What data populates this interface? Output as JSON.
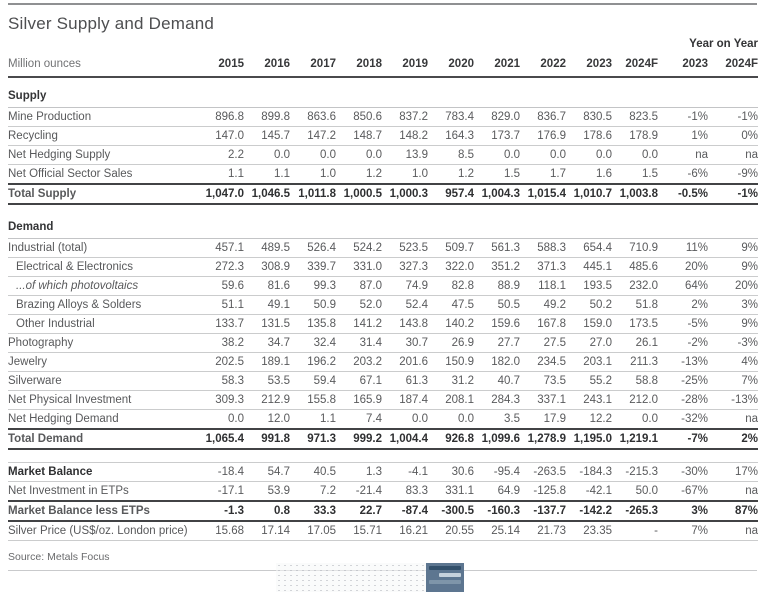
{
  "title": "Silver Supply and Demand",
  "unit_label": "Million ounces",
  "yoy_label": "Year on Year",
  "columns": [
    "2015",
    "2016",
    "2017",
    "2018",
    "2019",
    "2020",
    "2021",
    "2022",
    "2023",
    "2024F"
  ],
  "yoy_columns": [
    "2023",
    "2024F"
  ],
  "source": "Source: Metals Focus",
  "colors": {
    "rule_dark": "#424345",
    "rule_light": "#cbcccd",
    "text_dark": "#2f3032",
    "text_gray": "#595a5c",
    "thumbnail_panel_blue": "#5d7690"
  },
  "icons": {
    "chart_thumbnail": "scatter-chart-preview"
  },
  "sections": [
    {
      "header": "Supply",
      "rows": [
        {
          "label": "Mine Production",
          "style": "plain",
          "values": [
            "896.8",
            "899.8",
            "863.6",
            "850.6",
            "837.2",
            "783.4",
            "829.0",
            "836.7",
            "830.5",
            "823.5"
          ],
          "yoy": [
            "-1%",
            "-1%"
          ]
        },
        {
          "label": "Recycling",
          "style": "plain",
          "values": [
            "147.0",
            "145.7",
            "147.2",
            "148.7",
            "148.2",
            "164.3",
            "173.7",
            "176.9",
            "178.6",
            "178.9"
          ],
          "yoy": [
            "1%",
            "0%"
          ]
        },
        {
          "label": "Net Hedging Supply",
          "style": "plain",
          "values": [
            "2.2",
            "0.0",
            "0.0",
            "0.0",
            "13.9",
            "8.5",
            "0.0",
            "0.0",
            "0.0",
            "0.0"
          ],
          "yoy": [
            "na",
            "na"
          ]
        },
        {
          "label": "Net Official Sector Sales",
          "style": "plain",
          "values": [
            "1.1",
            "1.1",
            "1.0",
            "1.2",
            "1.0",
            "1.2",
            "1.5",
            "1.7",
            "1.6",
            "1.5"
          ],
          "yoy": [
            "-6%",
            "-9%"
          ]
        },
        {
          "label": "Total Supply",
          "style": "total",
          "values": [
            "1,047.0",
            "1,046.5",
            "1,011.8",
            "1,000.5",
            "1,000.3",
            "957.4",
            "1,004.3",
            "1,015.4",
            "1,010.7",
            "1,003.8"
          ],
          "yoy": [
            "-0.5%",
            "-1%"
          ]
        }
      ]
    },
    {
      "header": "Demand",
      "rows": [
        {
          "label": "Industrial (total)",
          "style": "plain",
          "values": [
            "457.1",
            "489.5",
            "526.4",
            "524.2",
            "523.5",
            "509.7",
            "561.3",
            "588.3",
            "654.4",
            "710.9"
          ],
          "yoy": [
            "11%",
            "9%"
          ]
        },
        {
          "label": "Electrical & Electronics",
          "style": "indent",
          "values": [
            "272.3",
            "308.9",
            "339.7",
            "331.0",
            "327.3",
            "322.0",
            "351.2",
            "371.3",
            "445.1",
            "485.6"
          ],
          "yoy": [
            "20%",
            "9%"
          ]
        },
        {
          "label": "...of which photovoltaics",
          "style": "italic",
          "values": [
            "59.6",
            "81.6",
            "99.3",
            "87.0",
            "74.9",
            "82.8",
            "88.9",
            "118.1",
            "193.5",
            "232.0"
          ],
          "yoy": [
            "64%",
            "20%"
          ]
        },
        {
          "label": "Brazing Alloys & Solders",
          "style": "indent",
          "values": [
            "51.1",
            "49.1",
            "50.9",
            "52.0",
            "52.4",
            "47.5",
            "50.5",
            "49.2",
            "50.2",
            "51.8"
          ],
          "yoy": [
            "2%",
            "3%"
          ]
        },
        {
          "label": "Other Industrial",
          "style": "indent",
          "values": [
            "133.7",
            "131.5",
            "135.8",
            "141.2",
            "143.8",
            "140.2",
            "159.6",
            "167.8",
            "159.0",
            "173.5"
          ],
          "yoy": [
            "-5%",
            "9%"
          ]
        },
        {
          "label": "Photography",
          "style": "plain",
          "values": [
            "38.2",
            "34.7",
            "32.4",
            "31.4",
            "30.7",
            "26.9",
            "27.7",
            "27.5",
            "27.0",
            "26.1"
          ],
          "yoy": [
            "-2%",
            "-3%"
          ]
        },
        {
          "label": "Jewelry",
          "style": "plain",
          "values": [
            "202.5",
            "189.1",
            "196.2",
            "203.2",
            "201.6",
            "150.9",
            "182.0",
            "234.5",
            "203.1",
            "211.3"
          ],
          "yoy": [
            "-13%",
            "4%"
          ]
        },
        {
          "label": "Silverware",
          "style": "plain",
          "values": [
            "58.3",
            "53.5",
            "59.4",
            "67.1",
            "61.3",
            "31.2",
            "40.7",
            "73.5",
            "55.2",
            "58.8"
          ],
          "yoy": [
            "-25%",
            "7%"
          ]
        },
        {
          "label": "Net Physical Investment",
          "style": "plain",
          "values": [
            "309.3",
            "212.9",
            "155.8",
            "165.9",
            "187.4",
            "208.1",
            "284.3",
            "337.1",
            "243.1",
            "212.0"
          ],
          "yoy": [
            "-28%",
            "-13%"
          ]
        },
        {
          "label": "Net Hedging Demand",
          "style": "plain",
          "values": [
            "0.0",
            "12.0",
            "1.1",
            "7.4",
            "0.0",
            "0.0",
            "3.5",
            "17.9",
            "12.2",
            "0.0"
          ],
          "yoy": [
            "-32%",
            "na"
          ]
        },
        {
          "label": "Total Demand",
          "style": "total",
          "values": [
            "1,065.4",
            "991.8",
            "971.3",
            "999.2",
            "1,004.4",
            "926.8",
            "1,099.6",
            "1,278.9",
            "1,195.0",
            "1,219.1"
          ],
          "yoy": [
            "-7%",
            "2%"
          ]
        }
      ]
    },
    {
      "header": "",
      "rows": [
        {
          "label": "Market Balance",
          "style": "bold-label light-top",
          "values": [
            "-18.4",
            "54.7",
            "40.5",
            "1.3",
            "-4.1",
            "30.6",
            "-95.4",
            "-263.5",
            "-184.3",
            "-215.3"
          ],
          "yoy": [
            "-30%",
            "17%"
          ]
        },
        {
          "label": "Net Investment in ETPs",
          "style": "plain",
          "values": [
            "-17.1",
            "53.9",
            "7.2",
            "-21.4",
            "83.3",
            "331.1",
            "64.9",
            "-125.8",
            "-42.1",
            "50.0"
          ],
          "yoy": [
            "-67%",
            "na"
          ]
        },
        {
          "label": "Market Balance less ETPs",
          "style": "total",
          "values": [
            "-1.3",
            "0.8",
            "33.3",
            "22.7",
            "-87.4",
            "-300.5",
            "-160.3",
            "-137.7",
            "-142.2",
            "-265.3"
          ],
          "yoy": [
            "3%",
            "87%"
          ]
        },
        {
          "label": "Silver Price (US$/oz. London price)",
          "style": "plain",
          "values": [
            "15.68",
            "17.14",
            "17.05",
            "15.71",
            "16.21",
            "20.55",
            "25.14",
            "21.73",
            "23.35",
            "-"
          ],
          "yoy": [
            "7%",
            "na"
          ]
        }
      ]
    }
  ]
}
